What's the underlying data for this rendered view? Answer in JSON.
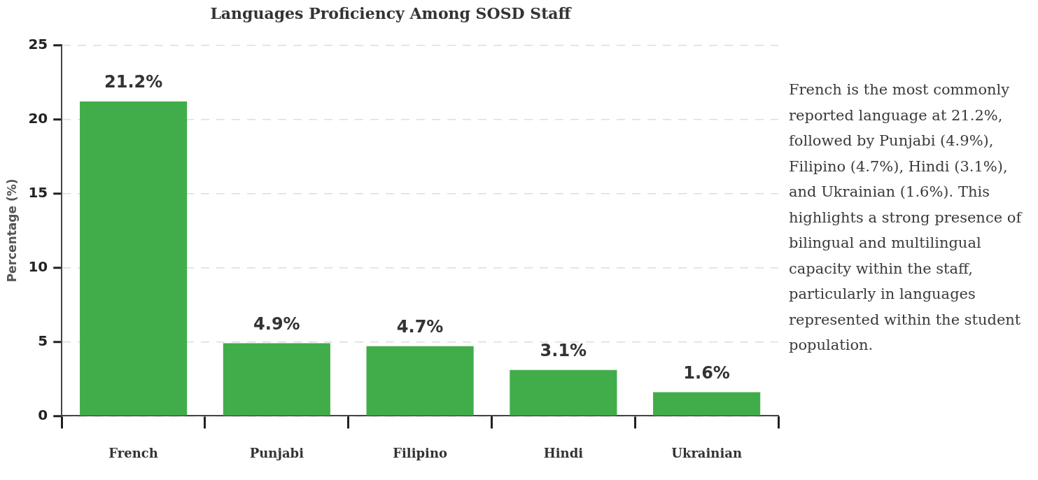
{
  "chart_data": {
    "type": "bar",
    "title": "Languages Proficiency Among SOSD Staff",
    "ylabel": "Percentage (%)",
    "categories": [
      "French",
      "Punjabi",
      "Filipino",
      "Hindi",
      "Ukrainian"
    ],
    "values": [
      21.2,
      4.9,
      4.7,
      3.1,
      1.6
    ],
    "value_labels": [
      "21.2%",
      "4.9%",
      "4.7%",
      "3.1%",
      "1.6%"
    ],
    "color": "#41ad4a",
    "ylim": [
      0,
      25
    ],
    "yticks": [
      0,
      5,
      10,
      15,
      20,
      25
    ],
    "grid": "y",
    "legend": false,
    "annotations": [
      "French is the most commonly reported language at 21.2%, followed by Punjabi (4.9%), Filipino (4.7%), Hindi (3.1%), and Ukrainian (1.6%). This highlights a strong presence of bilingual and multilingual capacity within the staff, particularly in languages represented within the student population."
    ]
  }
}
